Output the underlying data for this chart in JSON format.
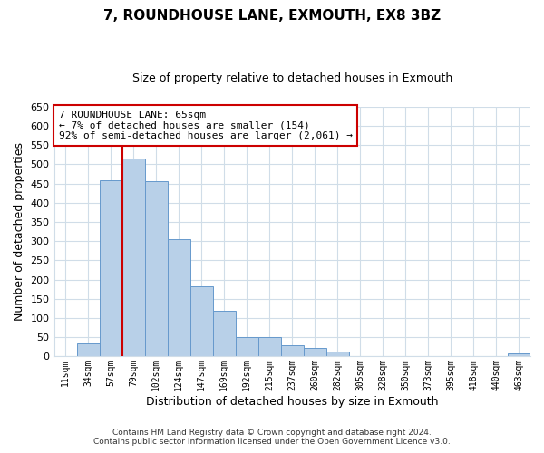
{
  "title": "7, ROUNDHOUSE LANE, EXMOUTH, EX8 3BZ",
  "subtitle": "Size of property relative to detached houses in Exmouth",
  "xlabel": "Distribution of detached houses by size in Exmouth",
  "ylabel": "Number of detached properties",
  "bar_labels": [
    "11sqm",
    "34sqm",
    "57sqm",
    "79sqm",
    "102sqm",
    "124sqm",
    "147sqm",
    "169sqm",
    "192sqm",
    "215sqm",
    "237sqm",
    "260sqm",
    "282sqm",
    "305sqm",
    "328sqm",
    "350sqm",
    "373sqm",
    "395sqm",
    "418sqm",
    "440sqm",
    "463sqm"
  ],
  "bar_values": [
    0,
    35,
    458,
    515,
    457,
    305,
    183,
    119,
    50,
    50,
    29,
    22,
    13,
    0,
    0,
    0,
    0,
    0,
    0,
    0,
    8
  ],
  "bar_color": "#b8d0e8",
  "bar_edge_color": "#6699cc",
  "ylim": [
    0,
    650
  ],
  "yticks": [
    0,
    50,
    100,
    150,
    200,
    250,
    300,
    350,
    400,
    450,
    500,
    550,
    600,
    650
  ],
  "vline_x_index": 2,
  "vline_color": "#cc0000",
  "annotation_line1": "7 ROUNDHOUSE LANE: 65sqm",
  "annotation_line2": "← 7% of detached houses are smaller (154)",
  "annotation_line3": "92% of semi-detached houses are larger (2,061) →",
  "annotation_box_color": "#cc0000",
  "footer_line1": "Contains HM Land Registry data © Crown copyright and database right 2024.",
  "footer_line2": "Contains public sector information licensed under the Open Government Licence v3.0.",
  "background_color": "#ffffff",
  "grid_color": "#d0dde8"
}
